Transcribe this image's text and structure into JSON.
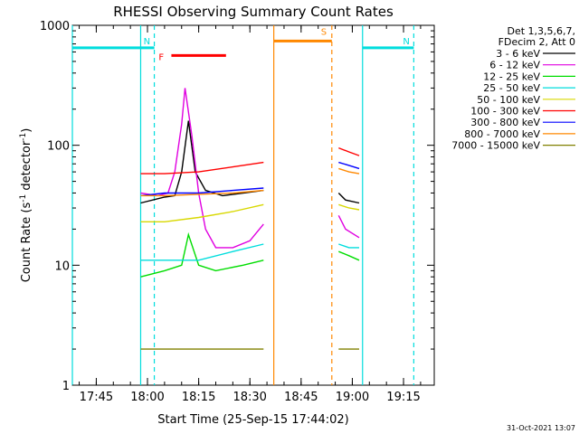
{
  "chart_data": {
    "type": "line",
    "title": "RHESSI Observing Summary Count Rates",
    "xlabel": "Start Time (25-Sep-15 17:44:02)",
    "ylabel_main": "Count Rate (s",
    "ylabel_sup1": "-1",
    "ylabel_mid": " detector",
    "ylabel_sup2": "-1",
    "ylabel_end": ")",
    "yscale": "log",
    "ylim": [
      1,
      1000
    ],
    "xlim": [
      "17:38",
      "19:24"
    ],
    "x_ticks": [
      "17:45",
      "18:00",
      "18:15",
      "18:30",
      "18:45",
      "19:00",
      "19:15"
    ],
    "y_ticks": [
      "1",
      "10",
      "100",
      "1000"
    ],
    "legend_title_line1": "Det 1,3,5,6,7,",
    "legend_title_line2": "FDecim 2, Att 0",
    "series": [
      {
        "name": "3 - 6 keV",
        "color": "#000000",
        "segments": [
          {
            "x": [
              "17:58",
              "18:05",
              "18:08",
              "18:10",
              "18:12",
              "18:14",
              "18:17",
              "18:22",
              "18:28",
              "18:34"
            ],
            "y": [
              33,
              37,
              38,
              60,
              160,
              60,
              42,
              38,
              40,
              42
            ]
          },
          {
            "x": [
              "18:56",
              "18:58",
              "19:02"
            ],
            "y": [
              40,
              35,
              33
            ]
          }
        ]
      },
      {
        "name": "6 - 12 keV",
        "color": "#e000e0",
        "segments": [
          {
            "x": [
              "17:58",
              "18:03",
              "18:06",
              "18:08",
              "18:10",
              "18:11",
              "18:13",
              "18:15",
              "18:17",
              "18:20",
              "18:25",
              "18:30",
              "18:34"
            ],
            "y": [
              40,
              38,
              40,
              60,
              150,
              300,
              120,
              40,
              20,
              14,
              14,
              16,
              22
            ]
          },
          {
            "x": [
              "18:56",
              "18:58",
              "19:02"
            ],
            "y": [
              26,
              20,
              17
            ]
          }
        ]
      },
      {
        "name": "12 - 25 keV",
        "color": "#00dd00",
        "segments": [
          {
            "x": [
              "17:58",
              "18:05",
              "18:10",
              "18:12",
              "18:15",
              "18:20",
              "18:28",
              "18:34"
            ],
            "y": [
              8,
              9,
              10,
              18,
              10,
              9,
              10,
              11
            ]
          },
          {
            "x": [
              "18:56",
              "18:59",
              "19:02"
            ],
            "y": [
              13,
              12,
              11
            ]
          }
        ]
      },
      {
        "name": "25 - 50 keV",
        "color": "#00dddd",
        "segments": [
          {
            "x": [
              "17:58",
              "18:05",
              "18:15",
              "18:25",
              "18:34"
            ],
            "y": [
              11,
              11,
              11,
              13,
              15
            ]
          },
          {
            "x": [
              "18:56",
              "18:59",
              "19:02"
            ],
            "y": [
              15,
              14,
              14
            ]
          }
        ]
      },
      {
        "name": "50 - 100 keV",
        "color": "#d8d800",
        "segments": [
          {
            "x": [
              "17:58",
              "18:05",
              "18:15",
              "18:25",
              "18:34"
            ],
            "y": [
              23,
              23,
              25,
              28,
              32
            ]
          },
          {
            "x": [
              "18:56",
              "18:59",
              "19:02"
            ],
            "y": [
              32,
              30,
              29
            ]
          }
        ]
      },
      {
        "name": "100 - 300 keV",
        "color": "#ff0000",
        "segments": [
          {
            "x": [
              "17:58",
              "18:05",
              "18:15",
              "18:25",
              "18:34"
            ],
            "y": [
              58,
              58,
              60,
              66,
              72
            ]
          },
          {
            "x": [
              "18:56",
              "18:59",
              "19:02"
            ],
            "y": [
              95,
              88,
              82
            ]
          }
        ]
      },
      {
        "name": "300 - 800 keV",
        "color": "#0000ff",
        "segments": [
          {
            "x": [
              "17:58",
              "18:05",
              "18:15",
              "18:25",
              "18:34"
            ],
            "y": [
              38,
              40,
              40,
              42,
              44
            ]
          },
          {
            "x": [
              "18:56",
              "18:59",
              "19:02"
            ],
            "y": [
              72,
              68,
              64
            ]
          }
        ]
      },
      {
        "name": "800 - 7000 keV",
        "color": "#ff8800",
        "segments": [
          {
            "x": [
              "17:58",
              "18:05",
              "18:15",
              "18:25",
              "18:34"
            ],
            "y": [
              38,
              38,
              39,
              40,
              42
            ]
          },
          {
            "x": [
              "18:56",
              "18:59",
              "19:02"
            ],
            "y": [
              64,
              60,
              58
            ]
          }
        ]
      },
      {
        "name": "7000 - 15000 keV",
        "color": "#808000",
        "segments": [
          {
            "x": [
              "17:58",
              "18:34"
            ],
            "y": [
              2,
              2
            ]
          },
          {
            "x": [
              "18:56",
              "19:02"
            ],
            "y": [
              2,
              2
            ]
          }
        ]
      }
    ],
    "flags": [
      {
        "label": "N",
        "color": "#00dddd",
        "x_start": "17:38",
        "x_end": "18:02",
        "y_level": 650
      },
      {
        "label": "N",
        "color": "#00dddd",
        "x_start": "19:03",
        "x_end": "19:18",
        "y_level": 650
      },
      {
        "label": "F",
        "color": "#ff0000",
        "x_start": "18:07",
        "x_end": "18:23",
        "y_level": 560
      },
      {
        "label": "S",
        "color": "#ff8800",
        "x_start": "18:37",
        "x_end": "18:54",
        "y_level": 740
      }
    ],
    "vlines": [
      {
        "x": "17:38",
        "color": "#00dddd",
        "style": "solid"
      },
      {
        "x": "17:58",
        "color": "#00dddd",
        "style": "solid"
      },
      {
        "x": "18:02",
        "color": "#00dddd",
        "style": "dashed"
      },
      {
        "x": "18:37",
        "color": "#ff8800",
        "style": "solid"
      },
      {
        "x": "18:54",
        "color": "#ff8800",
        "style": "dashed"
      },
      {
        "x": "19:03",
        "color": "#00dddd",
        "style": "solid"
      },
      {
        "x": "19:18",
        "color": "#00dddd",
        "style": "dashed"
      }
    ]
  },
  "footer_date": "31-Oct-2021 13:07"
}
